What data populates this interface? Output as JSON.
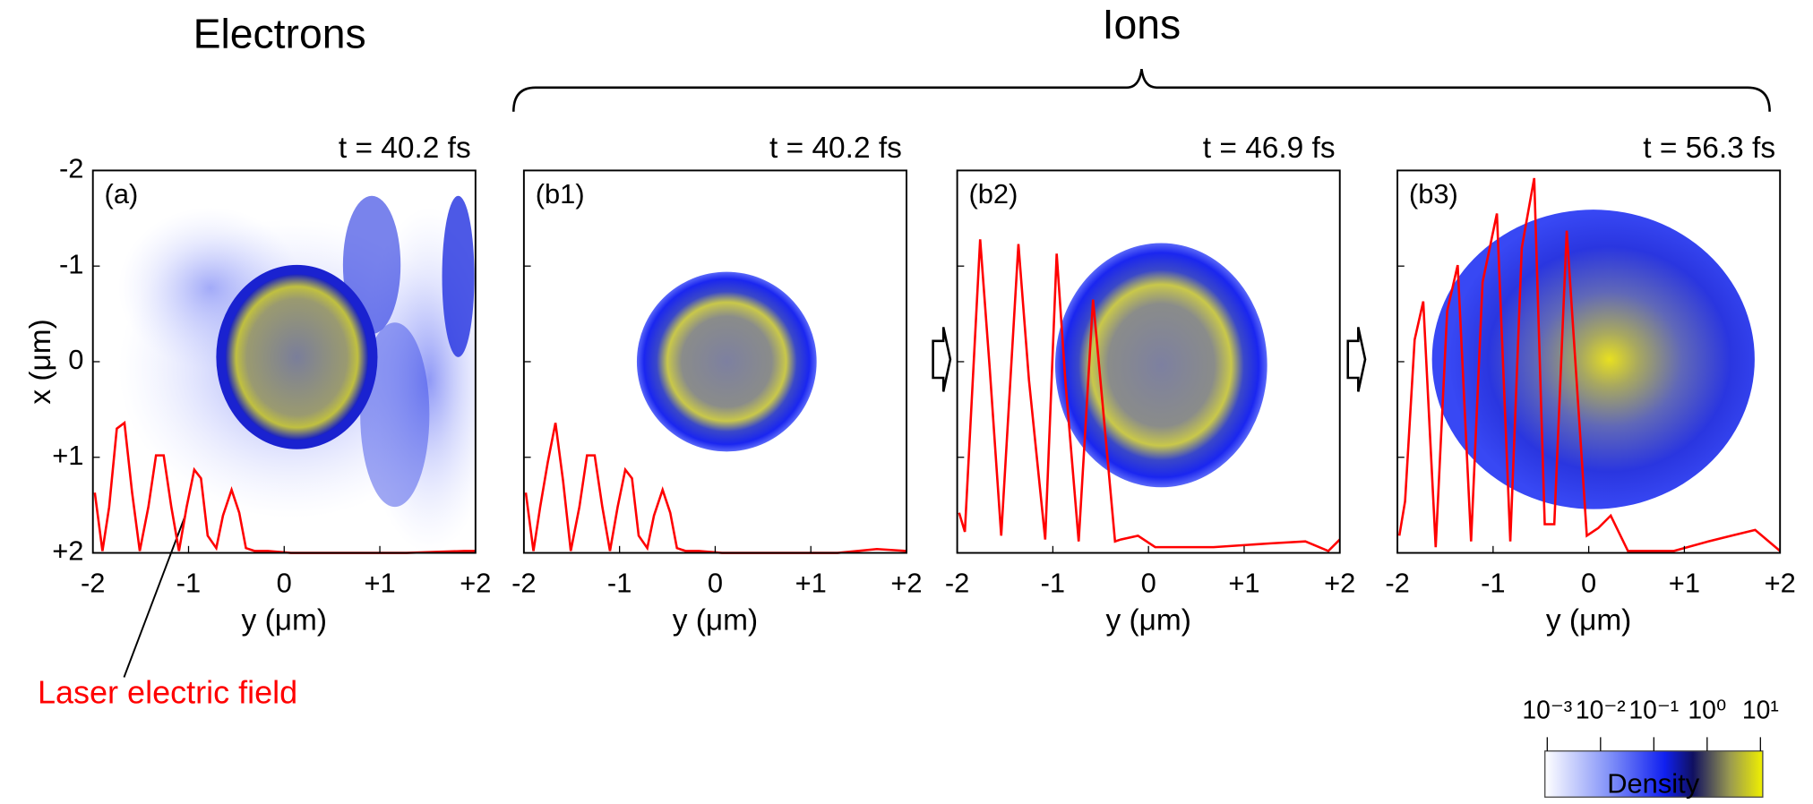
{
  "headings": {
    "left": "Electrons",
    "right": "Ions"
  },
  "colorbar": {
    "label": "Density",
    "log": true,
    "lim": [
      0.001,
      10
    ],
    "ticks": [
      {
        "value": 0.001,
        "label": "10⁻³"
      },
      {
        "value": 0.01,
        "label": "10⁻²"
      },
      {
        "value": 0.1,
        "label": "10⁻¹"
      },
      {
        "value": 1,
        "label": "10⁰"
      },
      {
        "value": 10,
        "label": "10¹"
      }
    ]
  },
  "chart_data": [
    {
      "type": "line",
      "title": "t = 40.2 fs",
      "panel_label": "(a)",
      "x_label": "y (μm)",
      "y_label": "x (μm)",
      "xlim": [
        -2,
        2
      ],
      "ylim": [
        -2,
        2
      ],
      "y_inverted": true,
      "xticks": [
        -2,
        -1,
        0,
        {
          "value": 1,
          "label": "+1"
        },
        {
          "value": 2,
          "label": "+2"
        }
      ],
      "yticks": [
        -2,
        -1,
        0,
        {
          "value": 1,
          "label": "+1"
        },
        {
          "value": 2,
          "label": "+2"
        }
      ],
      "annotation": "Laser electric field",
      "series": [
        {
          "name": "Laser electric field",
          "color": "#ff0000",
          "x": [
            -1.98,
            -1.9,
            -1.83,
            -1.75,
            -1.67,
            -1.59,
            -1.51,
            -1.42,
            -1.34,
            -1.26,
            -1.18,
            -1.1,
            -1.02,
            -0.94,
            -0.87,
            -0.8,
            -0.71,
            -0.64,
            -0.55,
            -0.47,
            -0.4,
            -0.31,
            -0.17,
            0.07,
            0.68,
            1.28,
            1.88,
            2.0
          ],
          "values": [
            1.37,
            1.98,
            1.52,
            0.7,
            0.64,
            1.37,
            1.98,
            1.52,
            0.98,
            0.98,
            1.52,
            1.98,
            1.52,
            1.13,
            1.22,
            1.82,
            1.95,
            1.61,
            1.34,
            1.58,
            1.95,
            1.98,
            1.98,
            2.0,
            2.0,
            2.0,
            1.98,
            1.98
          ]
        }
      ]
    },
    {
      "type": "line",
      "title": "t = 40.2 fs",
      "panel_label": "(b1)",
      "x_label": "y (μm)",
      "xlim": [
        -2,
        2
      ],
      "ylim": [
        -2,
        2
      ],
      "y_inverted": true,
      "xticks": [
        -2,
        -1,
        0,
        {
          "value": 1,
          "label": "+1"
        },
        {
          "value": 2,
          "label": "+2"
        }
      ],
      "yticks": [
        -1,
        0,
        1
      ],
      "series": [
        {
          "color": "#ff0000",
          "x": [
            -1.98,
            -1.9,
            -1.83,
            -1.75,
            -1.67,
            -1.59,
            -1.51,
            -1.42,
            -1.34,
            -1.26,
            -1.18,
            -1.1,
            -1.02,
            -0.94,
            -0.87,
            -0.8,
            -0.71,
            -0.64,
            -0.55,
            -0.47,
            -0.4,
            -0.31,
            -0.17,
            0.07,
            0.68,
            1.28,
            1.69,
            2.0
          ],
          "values": [
            1.37,
            1.98,
            1.52,
            1.05,
            0.64,
            1.25,
            1.98,
            1.52,
            0.98,
            0.98,
            1.52,
            1.98,
            1.52,
            1.13,
            1.22,
            1.82,
            1.95,
            1.61,
            1.34,
            1.58,
            1.95,
            1.98,
            1.98,
            2.0,
            2.0,
            2.0,
            1.96,
            1.98
          ]
        }
      ]
    },
    {
      "type": "line",
      "title": "t = 46.9 fs",
      "panel_label": "(b2)",
      "x_label": "y (μm)",
      "xlim": [
        -2,
        2
      ],
      "ylim": [
        -2,
        2
      ],
      "y_inverted": true,
      "xticks": [
        -2,
        -1,
        0,
        {
          "value": 1,
          "label": "+1"
        },
        {
          "value": 2,
          "label": "+2"
        }
      ],
      "yticks": [
        -1,
        0,
        1
      ],
      "series": [
        {
          "color": "#ff0000",
          "x": [
            -1.98,
            -1.92,
            -1.76,
            -1.66,
            -1.54,
            -1.36,
            -1.25,
            -1.08,
            -0.96,
            -0.87,
            -0.73,
            -0.58,
            -0.47,
            -0.35,
            -0.29,
            -0.11,
            0.07,
            0.68,
            1.28,
            1.64,
            1.88,
            2.0
          ],
          "values": [
            1.58,
            1.78,
            -1.28,
            0.07,
            1.82,
            -1.23,
            0.19,
            1.86,
            -1.13,
            0.19,
            1.88,
            -0.65,
            0.55,
            1.88,
            1.86,
            1.82,
            1.94,
            1.94,
            1.9,
            1.88,
            1.98,
            1.86
          ]
        }
      ]
    },
    {
      "type": "line",
      "title": "t = 56.3 fs",
      "panel_label": "(b3)",
      "x_label": "y (μm)",
      "xlim": [
        -2,
        2
      ],
      "ylim": [
        -2,
        2
      ],
      "y_inverted": true,
      "xticks": [
        -2,
        -1,
        0,
        {
          "value": 1,
          "label": "+1"
        },
        {
          "value": 2,
          "label": "+2"
        }
      ],
      "yticks": [
        -1,
        0,
        1
      ],
      "series": [
        {
          "color": "#ff0000",
          "x": [
            -1.98,
            -1.92,
            -1.82,
            -1.73,
            -1.6,
            -1.48,
            -1.37,
            -1.23,
            -1.11,
            -0.96,
            -0.82,
            -0.7,
            -0.57,
            -0.46,
            -0.36,
            -0.23,
            -0.02,
            0.1,
            0.23,
            0.41,
            0.89,
            1.25,
            1.49,
            1.74,
            2.0
          ],
          "values": [
            1.82,
            1.46,
            -0.23,
            -0.63,
            1.94,
            -0.53,
            -1.01,
            1.88,
            -0.83,
            -1.55,
            1.88,
            -1.19,
            -1.92,
            1.7,
            1.7,
            -1.37,
            1.82,
            1.74,
            1.61,
            1.98,
            1.98,
            1.88,
            1.82,
            1.76,
            1.98
          ]
        }
      ]
    }
  ]
}
